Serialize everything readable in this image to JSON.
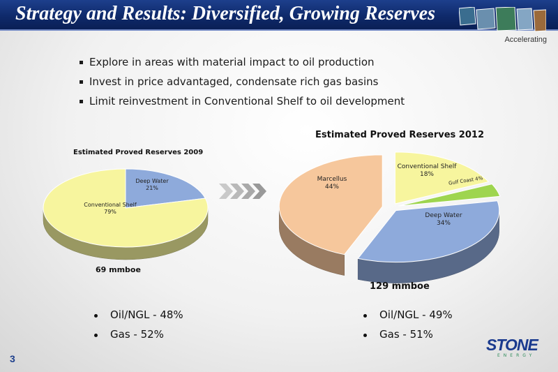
{
  "header": {
    "title": "Strategy and Results: Diversified, Growing Reserves",
    "tagline": "Accelerating"
  },
  "bullets_top": [
    "Explore in areas with material impact to oil production",
    "Invest in price advantaged, condensate rich gas basins",
    "Limit reinvestment in Conventional Shelf to oil development"
  ],
  "chart_data": [
    {
      "type": "pie",
      "title": "Estimated Proved Reserves 2009",
      "total": "69 mmboe",
      "slices": [
        {
          "label": "Deep Water",
          "value": 21,
          "display": "21%",
          "color": "#8eaadb"
        },
        {
          "label": "Conventional Shelf",
          "value": 79,
          "display": "79%",
          "color": "#f7f59e"
        }
      ]
    },
    {
      "type": "pie",
      "title": "Estimated Proved Reserves 2012",
      "total": "129 mmboe",
      "slices": [
        {
          "label": "Conventional Shelf",
          "value": 18,
          "display": "18%",
          "color": "#f7f59e"
        },
        {
          "label": "Gulf Coast",
          "value": 4,
          "display": "4%",
          "color": "#9ed54f"
        },
        {
          "label": "Deep Water",
          "value": 34,
          "display": "34%",
          "color": "#8eaadb"
        },
        {
          "label": "Marcellus",
          "value": 44,
          "display": "44%",
          "color": "#f6c79c"
        }
      ]
    }
  ],
  "bullets_bottom_2009": [
    "Oil/NGL - 48%",
    "Gas - 52%"
  ],
  "bullets_bottom_2012": [
    "Oil/NGL - 49%",
    "Gas - 51%"
  ],
  "footer": {
    "page_number": "3",
    "logo_text": "STONE",
    "logo_subtext": "ENERGY"
  },
  "icons": {
    "arrows": "chevron-arrows-icon"
  }
}
